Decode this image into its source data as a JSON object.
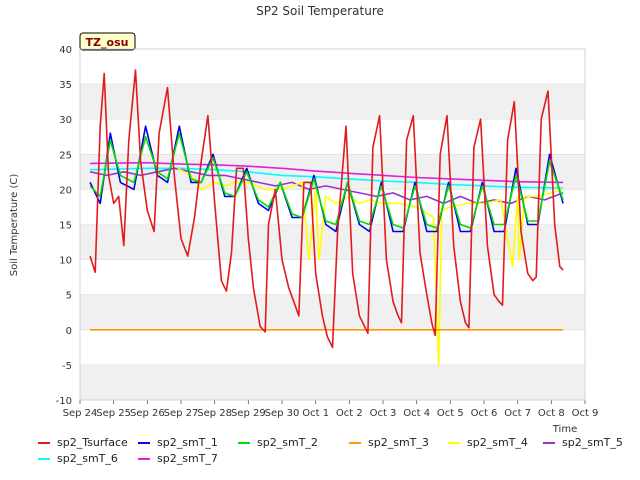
{
  "chart_data": {
    "type": "line",
    "title": "SP2 Soil Temperature",
    "ylabel": "Soil Temperature (C)",
    "xlabel": "Time",
    "ylim": [
      -10,
      40
    ],
    "yticks": [
      -10,
      -5,
      0,
      5,
      10,
      15,
      20,
      25,
      30,
      35,
      40
    ],
    "xticks": [
      "Sep 24",
      "Sep 25",
      "Sep 26",
      "Sep 27",
      "Sep 28",
      "Sep 29",
      "Sep 30",
      "Oct 1",
      "Oct 2",
      "Oct 3",
      "Oct 4",
      "Oct 5",
      "Oct 6",
      "Oct 7",
      "Oct 8",
      "Oct 9"
    ],
    "annotation": "TZ_osu",
    "legend_placement": "bottom",
    "grid": "alternating horizontal bands",
    "x_unit_note": "x values are days since Sep 24 (tick index)",
    "series": [
      {
        "name": "sp2_Tsurface",
        "color": "#e31a1c",
        "points": [
          [
            0.3,
            10.5
          ],
          [
            0.45,
            8.2
          ],
          [
            0.6,
            29
          ],
          [
            0.72,
            36.5
          ],
          [
            0.85,
            22
          ],
          [
            1.0,
            18
          ],
          [
            1.15,
            19
          ],
          [
            1.3,
            12
          ],
          [
            1.45,
            27
          ],
          [
            1.65,
            37
          ],
          [
            1.8,
            24
          ],
          [
            2.0,
            17
          ],
          [
            2.2,
            14
          ],
          [
            2.35,
            28
          ],
          [
            2.6,
            34.5
          ],
          [
            2.8,
            22
          ],
          [
            3.0,
            13
          ],
          [
            3.2,
            10.5
          ],
          [
            3.4,
            16
          ],
          [
            3.6,
            24
          ],
          [
            3.8,
            30.5
          ],
          [
            4.0,
            18
          ],
          [
            4.2,
            7
          ],
          [
            4.35,
            5.5
          ],
          [
            4.5,
            11
          ],
          [
            4.65,
            23
          ],
          [
            4.85,
            23
          ],
          [
            5.0,
            13
          ],
          [
            5.15,
            6
          ],
          [
            5.35,
            0.5
          ],
          [
            5.5,
            -0.3
          ],
          [
            5.6,
            15
          ],
          [
            5.8,
            20
          ],
          [
            6.0,
            10
          ],
          [
            6.2,
            6
          ],
          [
            6.35,
            4
          ],
          [
            6.5,
            2
          ],
          [
            6.65,
            21
          ],
          [
            6.85,
            21
          ],
          [
            7.0,
            8
          ],
          [
            7.2,
            2
          ],
          [
            7.35,
            -1
          ],
          [
            7.5,
            -2.5
          ],
          [
            7.65,
            14
          ],
          [
            7.9,
            29
          ],
          [
            8.1,
            8
          ],
          [
            8.3,
            2
          ],
          [
            8.45,
            0.5
          ],
          [
            8.55,
            -0.5
          ],
          [
            8.7,
            26
          ],
          [
            8.9,
            30.5
          ],
          [
            9.1,
            10
          ],
          [
            9.3,
            4
          ],
          [
            9.45,
            2
          ],
          [
            9.55,
            1
          ],
          [
            9.7,
            27
          ],
          [
            9.9,
            30.5
          ],
          [
            10.1,
            11
          ],
          [
            10.3,
            5
          ],
          [
            10.45,
            1
          ],
          [
            10.55,
            -0.8
          ],
          [
            10.7,
            25
          ],
          [
            10.9,
            30.5
          ],
          [
            11.1,
            12
          ],
          [
            11.3,
            4
          ],
          [
            11.45,
            1
          ],
          [
            11.55,
            0.3
          ],
          [
            11.7,
            26
          ],
          [
            11.9,
            30
          ],
          [
            12.1,
            12
          ],
          [
            12.3,
            5
          ],
          [
            12.45,
            4
          ],
          [
            12.55,
            3.5
          ],
          [
            12.7,
            27
          ],
          [
            12.9,
            32.5
          ],
          [
            13.1,
            14
          ],
          [
            13.3,
            8
          ],
          [
            13.45,
            7
          ],
          [
            13.55,
            7.5
          ],
          [
            13.7,
            30
          ],
          [
            13.9,
            34
          ],
          [
            14.1,
            15
          ],
          [
            14.25,
            9
          ],
          [
            14.35,
            8.5
          ]
        ]
      },
      {
        "name": "sp2_smT_1",
        "color": "#0000ee",
        "points": [
          [
            0.3,
            21
          ],
          [
            0.6,
            18
          ],
          [
            0.9,
            28
          ],
          [
            1.2,
            21
          ],
          [
            1.6,
            20
          ],
          [
            1.95,
            29
          ],
          [
            2.3,
            22
          ],
          [
            2.6,
            21
          ],
          [
            2.95,
            29
          ],
          [
            3.3,
            21
          ],
          [
            3.6,
            21
          ],
          [
            3.95,
            25
          ],
          [
            4.3,
            19
          ],
          [
            4.6,
            19
          ],
          [
            4.95,
            23
          ],
          [
            5.3,
            18
          ],
          [
            5.6,
            17
          ],
          [
            5.95,
            21
          ],
          [
            6.3,
            16
          ],
          [
            6.6,
            16
          ],
          [
            6.95,
            22
          ],
          [
            7.3,
            15
          ],
          [
            7.6,
            14
          ],
          [
            7.95,
            21
          ],
          [
            8.3,
            15
          ],
          [
            8.6,
            14
          ],
          [
            8.95,
            21
          ],
          [
            9.3,
            14
          ],
          [
            9.6,
            14
          ],
          [
            9.95,
            21
          ],
          [
            10.3,
            14
          ],
          [
            10.6,
            14
          ],
          [
            10.95,
            21
          ],
          [
            11.3,
            14
          ],
          [
            11.6,
            14
          ],
          [
            11.95,
            21
          ],
          [
            12.3,
            14
          ],
          [
            12.6,
            14
          ],
          [
            12.95,
            23
          ],
          [
            13.3,
            15
          ],
          [
            13.6,
            15
          ],
          [
            13.95,
            25
          ],
          [
            14.35,
            18
          ]
        ]
      },
      {
        "name": "sp2_smT_2",
        "color": "#00dd00",
        "points": [
          [
            0.3,
            20.5
          ],
          [
            0.6,
            19
          ],
          [
            0.9,
            27
          ],
          [
            1.2,
            22
          ],
          [
            1.6,
            21
          ],
          [
            1.95,
            27.5
          ],
          [
            2.3,
            22.5
          ],
          [
            2.6,
            21.5
          ],
          [
            2.95,
            28
          ],
          [
            3.3,
            21.5
          ],
          [
            3.6,
            21
          ],
          [
            3.95,
            24.5
          ],
          [
            4.3,
            19.5
          ],
          [
            4.6,
            19
          ],
          [
            4.95,
            22.5
          ],
          [
            5.3,
            18.5
          ],
          [
            5.6,
            17.5
          ],
          [
            5.95,
            21
          ],
          [
            6.3,
            16.5
          ],
          [
            6.6,
            16
          ],
          [
            6.95,
            21.5
          ],
          [
            7.3,
            15.5
          ],
          [
            7.6,
            15
          ],
          [
            7.95,
            21
          ],
          [
            8.3,
            15.5
          ],
          [
            8.6,
            15
          ],
          [
            8.95,
            20.5
          ],
          [
            9.3,
            15
          ],
          [
            9.6,
            14.5
          ],
          [
            9.95,
            20.5
          ],
          [
            10.3,
            15
          ],
          [
            10.6,
            14.5
          ],
          [
            10.95,
            20.5
          ],
          [
            11.3,
            15
          ],
          [
            11.6,
            14.5
          ],
          [
            11.95,
            20.5
          ],
          [
            12.3,
            15
          ],
          [
            12.6,
            15
          ],
          [
            12.95,
            22
          ],
          [
            13.3,
            15.5
          ],
          [
            13.6,
            15.5
          ],
          [
            13.95,
            24
          ],
          [
            14.35,
            18.5
          ]
        ]
      },
      {
        "name": "sp2_smT_3",
        "color": "#ff9900",
        "points": [
          [
            0.3,
            0
          ],
          [
            14.35,
            0
          ]
        ]
      },
      {
        "name": "sp2_smT_4",
        "color": "#ffff00",
        "points": [
          [
            2.9,
            23
          ],
          [
            3.3,
            22
          ],
          [
            3.6,
            20
          ],
          [
            4.0,
            21
          ],
          [
            4.3,
            20.5
          ],
          [
            4.6,
            21
          ],
          [
            5.0,
            21
          ],
          [
            5.5,
            20
          ],
          [
            6.0,
            20
          ],
          [
            6.6,
            21
          ],
          [
            6.8,
            10
          ],
          [
            7.0,
            20
          ],
          [
            7.1,
            10
          ],
          [
            7.3,
            19
          ],
          [
            7.6,
            18
          ],
          [
            8.0,
            19
          ],
          [
            8.3,
            18
          ],
          [
            8.6,
            18.5
          ],
          [
            9.0,
            18
          ],
          [
            9.5,
            18
          ],
          [
            10.0,
            17.5
          ],
          [
            10.5,
            16
          ],
          [
            10.65,
            -5
          ],
          [
            10.75,
            17
          ],
          [
            11.0,
            17.5
          ],
          [
            11.5,
            18
          ],
          [
            12.0,
            18
          ],
          [
            12.5,
            18.5
          ],
          [
            12.85,
            9
          ],
          [
            13.0,
            19
          ],
          [
            13.05,
            10
          ],
          [
            13.2,
            19
          ],
          [
            13.6,
            19
          ],
          [
            14.0,
            19.5
          ],
          [
            14.35,
            20
          ]
        ]
      },
      {
        "name": "sp2_smT_5",
        "color": "#9933cc",
        "points": [
          [
            0.3,
            22.5
          ],
          [
            0.8,
            22
          ],
          [
            1.3,
            22.5
          ],
          [
            1.8,
            22
          ],
          [
            2.3,
            22.5
          ],
          [
            2.8,
            23
          ],
          [
            3.3,
            22.5
          ],
          [
            3.8,
            22
          ],
          [
            4.3,
            22
          ],
          [
            4.8,
            21.5
          ],
          [
            5.3,
            21
          ],
          [
            5.8,
            20.5
          ],
          [
            6.3,
            21
          ],
          [
            6.8,
            20
          ],
          [
            7.3,
            20.5
          ],
          [
            7.8,
            20
          ],
          [
            8.3,
            19.5
          ],
          [
            8.8,
            19
          ],
          [
            9.3,
            19.5
          ],
          [
            9.8,
            18.5
          ],
          [
            10.3,
            19
          ],
          [
            10.8,
            18
          ],
          [
            11.3,
            19
          ],
          [
            11.8,
            18
          ],
          [
            12.3,
            18.5
          ],
          [
            12.8,
            18
          ],
          [
            13.3,
            19
          ],
          [
            13.8,
            18.5
          ],
          [
            14.35,
            19.5
          ]
        ]
      },
      {
        "name": "sp2_smT_6",
        "color": "#00ffff",
        "points": [
          [
            0.3,
            22.8
          ],
          [
            2.0,
            23
          ],
          [
            3.0,
            23
          ],
          [
            4.0,
            22.8
          ],
          [
            5.0,
            22.5
          ],
          [
            6.0,
            22
          ],
          [
            7.0,
            21.8
          ],
          [
            8.0,
            21.5
          ],
          [
            9.0,
            21.2
          ],
          [
            10.0,
            21
          ],
          [
            11.0,
            20.7
          ],
          [
            12.0,
            20.5
          ],
          [
            13.0,
            20.3
          ],
          [
            14.35,
            20.2
          ]
        ]
      },
      {
        "name": "sp2_smT_7",
        "color": "#dd22dd",
        "points": [
          [
            0.3,
            23.7
          ],
          [
            2.0,
            23.8
          ],
          [
            3.0,
            23.6
          ],
          [
            4.0,
            23.5
          ],
          [
            5.0,
            23.3
          ],
          [
            6.0,
            23
          ],
          [
            7.0,
            22.6
          ],
          [
            8.0,
            22.3
          ],
          [
            9.0,
            22
          ],
          [
            10.0,
            21.7
          ],
          [
            11.0,
            21.5
          ],
          [
            12.0,
            21.3
          ],
          [
            13.0,
            21.1
          ],
          [
            14.35,
            21
          ]
        ]
      }
    ]
  }
}
